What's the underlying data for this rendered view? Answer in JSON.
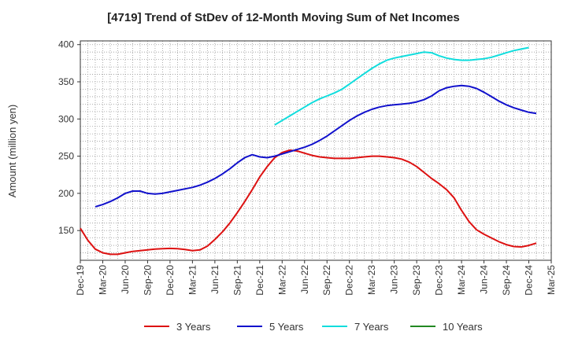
{
  "chart_data": {
    "type": "line",
    "title": "[4719]  Trend of StDev of 12-Month Moving Sum of Net Incomes",
    "ylabel": "Amount (million yen)",
    "xlabel": "",
    "ylim": [
      110,
      405
    ],
    "yticks": [
      150,
      200,
      250,
      300,
      350,
      400
    ],
    "x_range": [
      "Dec-19",
      "Mar-25"
    ],
    "x_tick_labels": [
      "Dec-19",
      "Mar-20",
      "Jun-20",
      "Sep-20",
      "Dec-20",
      "Mar-21",
      "Jun-21",
      "Sep-21",
      "Dec-21",
      "Mar-22",
      "Jun-22",
      "Sep-22",
      "Dec-22",
      "Mar-23",
      "Jun-23",
      "Sep-23",
      "Dec-23",
      "Mar-24",
      "Jun-24",
      "Sep-24",
      "Dec-24",
      "Mar-25"
    ],
    "grid": true,
    "legend_position": "bottom",
    "series": [
      {
        "name": "3 Years",
        "color": "#dd1111",
        "points": [
          [
            "Dec-19",
            153
          ],
          [
            "Jan-20",
            137
          ],
          [
            "Feb-20",
            125
          ],
          [
            "Mar-20",
            120
          ],
          [
            "Apr-20",
            118
          ],
          [
            "May-20",
            118
          ],
          [
            "Jun-20",
            120
          ],
          [
            "Jul-20",
            122
          ],
          [
            "Aug-20",
            123
          ],
          [
            "Sep-20",
            124
          ],
          [
            "Oct-20",
            125
          ],
          [
            "Nov-20",
            125.5
          ],
          [
            "Dec-20",
            126
          ],
          [
            "Jan-21",
            125.5
          ],
          [
            "Feb-21",
            124.5
          ],
          [
            "Mar-21",
            123
          ],
          [
            "Apr-21",
            124
          ],
          [
            "May-21",
            129
          ],
          [
            "Jun-21",
            138
          ],
          [
            "Jul-21",
            148
          ],
          [
            "Aug-21",
            160
          ],
          [
            "Sep-21",
            174
          ],
          [
            "Oct-21",
            189
          ],
          [
            "Nov-21",
            205
          ],
          [
            "Dec-21",
            222
          ],
          [
            "Jan-22",
            236
          ],
          [
            "Feb-22",
            248
          ],
          [
            "Mar-22",
            255
          ],
          [
            "Apr-22",
            258
          ],
          [
            "May-22",
            257
          ],
          [
            "Jun-22",
            254
          ],
          [
            "Jul-22",
            251
          ],
          [
            "Aug-22",
            249
          ],
          [
            "Sep-22",
            248
          ],
          [
            "Oct-22",
            247
          ],
          [
            "Nov-22",
            247
          ],
          [
            "Dec-22",
            247
          ],
          [
            "Jan-23",
            248
          ],
          [
            "Feb-23",
            249
          ],
          [
            "Mar-23",
            250
          ],
          [
            "Apr-23",
            250
          ],
          [
            "May-23",
            249
          ],
          [
            "Jun-23",
            248
          ],
          [
            "Jul-23",
            246
          ],
          [
            "Aug-23",
            242
          ],
          [
            "Sep-23",
            236
          ],
          [
            "Oct-23",
            228
          ],
          [
            "Nov-23",
            220
          ],
          [
            "Dec-23",
            213
          ],
          [
            "Jan-24",
            205
          ],
          [
            "Feb-24",
            194
          ],
          [
            "Mar-24",
            177
          ],
          [
            "Apr-24",
            162
          ],
          [
            "May-24",
            151
          ],
          [
            "Jun-24",
            145
          ],
          [
            "Jul-24",
            140
          ],
          [
            "Aug-24",
            135
          ],
          [
            "Sep-24",
            131
          ],
          [
            "Oct-24",
            128.5
          ],
          [
            "Nov-24",
            128
          ],
          [
            "Dec-24",
            130
          ],
          [
            "Jan-25",
            133
          ]
        ]
      },
      {
        "name": "5 Years",
        "color": "#1111cc",
        "points": [
          [
            "Feb-20",
            182
          ],
          [
            "Mar-20",
            185
          ],
          [
            "Apr-20",
            189
          ],
          [
            "May-20",
            194
          ],
          [
            "Jun-20",
            200
          ],
          [
            "Jul-20",
            203
          ],
          [
            "Aug-20",
            203
          ],
          [
            "Sep-20",
            200
          ],
          [
            "Oct-20",
            199
          ],
          [
            "Nov-20",
            200
          ],
          [
            "Dec-20",
            202
          ],
          [
            "Jan-21",
            204
          ],
          [
            "Feb-21",
            206
          ],
          [
            "Mar-21",
            208
          ],
          [
            "Apr-21",
            211
          ],
          [
            "May-21",
            215
          ],
          [
            "Jun-21",
            220
          ],
          [
            "Jul-21",
            226
          ],
          [
            "Aug-21",
            233
          ],
          [
            "Sep-21",
            241
          ],
          [
            "Oct-21",
            248
          ],
          [
            "Nov-21",
            252
          ],
          [
            "Dec-21",
            249
          ],
          [
            "Jan-22",
            248
          ],
          [
            "Feb-22",
            250
          ],
          [
            "Mar-22",
            253
          ],
          [
            "Apr-22",
            256
          ],
          [
            "May-22",
            259
          ],
          [
            "Jun-22",
            262
          ],
          [
            "Jul-22",
            266
          ],
          [
            "Aug-22",
            271
          ],
          [
            "Sep-22",
            277
          ],
          [
            "Oct-22",
            284
          ],
          [
            "Nov-22",
            291
          ],
          [
            "Dec-22",
            298
          ],
          [
            "Jan-23",
            304
          ],
          [
            "Feb-23",
            309
          ],
          [
            "Mar-23",
            313
          ],
          [
            "Apr-23",
            316
          ],
          [
            "May-23",
            318
          ],
          [
            "Jun-23",
            319
          ],
          [
            "Jul-23",
            320
          ],
          [
            "Aug-23",
            321
          ],
          [
            "Sep-23",
            323
          ],
          [
            "Oct-23",
            326
          ],
          [
            "Nov-23",
            331
          ],
          [
            "Dec-23",
            338
          ],
          [
            "Jan-24",
            342
          ],
          [
            "Feb-24",
            344
          ],
          [
            "Mar-24",
            345
          ],
          [
            "Apr-24",
            344
          ],
          [
            "May-24",
            341
          ],
          [
            "Jun-24",
            336
          ],
          [
            "Jul-24",
            330
          ],
          [
            "Aug-24",
            324
          ],
          [
            "Sep-24",
            319
          ],
          [
            "Oct-24",
            315
          ],
          [
            "Nov-24",
            312
          ],
          [
            "Dec-24",
            309
          ],
          [
            "Jan-25",
            307.5
          ]
        ]
      },
      {
        "name": "7 Years",
        "color": "#11dddd",
        "points": [
          [
            "Feb-22",
            292
          ],
          [
            "Mar-22",
            298
          ],
          [
            "Apr-22",
            304
          ],
          [
            "May-22",
            310
          ],
          [
            "Jun-22",
            316
          ],
          [
            "Jul-22",
            322
          ],
          [
            "Aug-22",
            327
          ],
          [
            "Sep-22",
            331
          ],
          [
            "Oct-22",
            335
          ],
          [
            "Nov-22",
            340
          ],
          [
            "Dec-22",
            347
          ],
          [
            "Jan-23",
            354
          ],
          [
            "Feb-23",
            361
          ],
          [
            "Mar-23",
            368
          ],
          [
            "Apr-23",
            374
          ],
          [
            "May-23",
            379
          ],
          [
            "Jun-23",
            382
          ],
          [
            "Jul-23",
            384
          ],
          [
            "Aug-23",
            386
          ],
          [
            "Sep-23",
            388
          ],
          [
            "Oct-23",
            390
          ],
          [
            "Nov-23",
            389
          ],
          [
            "Dec-23",
            385
          ],
          [
            "Jan-24",
            382
          ],
          [
            "Feb-24",
            380
          ],
          [
            "Mar-24",
            379
          ],
          [
            "Apr-24",
            379
          ],
          [
            "May-24",
            380
          ],
          [
            "Jun-24",
            381
          ],
          [
            "Jul-24",
            383
          ],
          [
            "Aug-24",
            386
          ],
          [
            "Sep-24",
            389
          ],
          [
            "Oct-24",
            392
          ],
          [
            "Nov-24",
            394
          ],
          [
            "Dec-24",
            396
          ]
        ]
      },
      {
        "name": "10 Years",
        "color": "#228822",
        "points": []
      }
    ]
  }
}
